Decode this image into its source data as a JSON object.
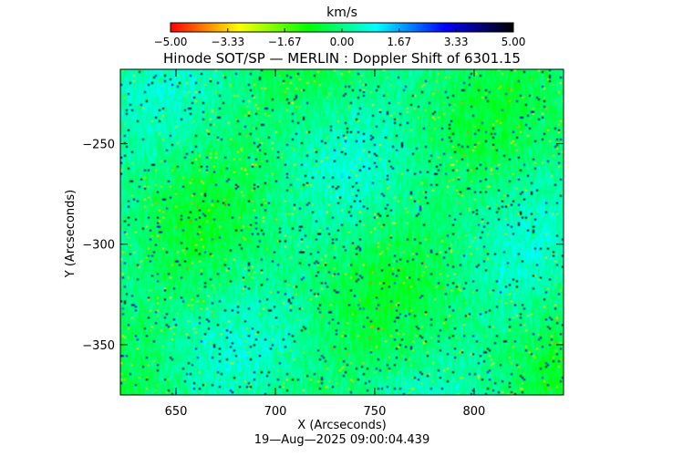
{
  "chart_data": {
    "type": "heatmap",
    "title": "Hinode SOT/SP — MERLIN : Doppler Shift of 6301.15",
    "xlabel": "X (Arcseconds)",
    "ylabel": "Y (Arcseconds)",
    "xlim": [
      622,
      845
    ],
    "ylim": [
      -375,
      -213
    ],
    "x_ticks": [
      650,
      700,
      750,
      800
    ],
    "x_tick_labels": [
      "650",
      "700",
      "750",
      "800"
    ],
    "y_ticks": [
      -250,
      -300,
      -350
    ],
    "y_tick_labels": [
      "−250",
      "−300",
      "−350"
    ],
    "colorbar": {
      "label": "km/s",
      "range": [
        -5.0,
        5.0
      ],
      "ticks": [
        -5.0,
        -3.33,
        -1.67,
        0.0,
        1.67,
        3.33,
        5.0
      ],
      "tick_labels": [
        "−5.00",
        "−3.33",
        "−1.67",
        "0.00",
        "1.67",
        "3.33",
        "5.00"
      ],
      "colors": [
        "#ff0000",
        "#ffff00",
        "#00ff00",
        "#00ffff",
        "#0000ff",
        "#000000"
      ]
    },
    "value_summary": {
      "dominant_range": [
        -1.0,
        1.0
      ],
      "extremes_range": [
        -5.0,
        5.0
      ]
    },
    "grid": false,
    "legend": "colorbar-top"
  },
  "footer": {
    "timestamp": "19—Aug—2025 09:00:04.439"
  }
}
